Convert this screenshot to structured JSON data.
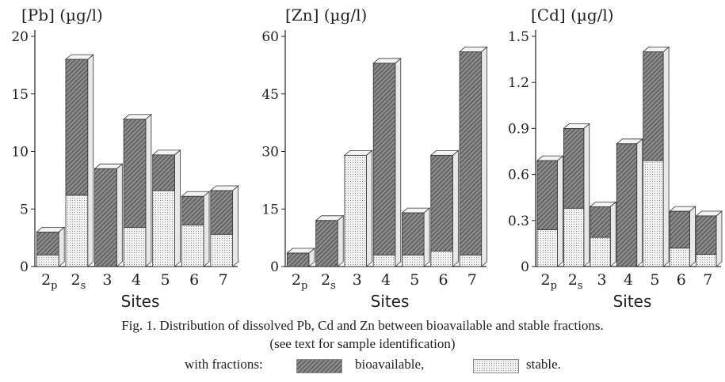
{
  "chart_data": [
    {
      "type": "bar",
      "stacked": true,
      "title": "[Pb] (µg/l)",
      "xlabel": "Sites",
      "categories": [
        "2p",
        "2s",
        "3",
        "4",
        "5",
        "6",
        "7"
      ],
      "category_base": [
        "2",
        "2",
        "3",
        "4",
        "5",
        "6",
        "7"
      ],
      "category_sub": [
        "p",
        "s",
        "",
        "",
        "",
        "",
        ""
      ],
      "yticks": [
        "0",
        "5",
        "10",
        "15",
        "20"
      ],
      "ylim": [
        0,
        20
      ],
      "series": [
        {
          "name": "stable",
          "values": [
            1.0,
            6.2,
            0,
            3.4,
            6.6,
            3.6,
            2.8
          ]
        },
        {
          "name": "bioavailable",
          "values": [
            2.0,
            11.8,
            8.5,
            9.4,
            3.1,
            2.5,
            3.8
          ]
        }
      ]
    },
    {
      "type": "bar",
      "stacked": true,
      "title": "[Zn] (µg/l)",
      "xlabel": "Sites",
      "categories": [
        "2p",
        "2s",
        "3",
        "4",
        "5",
        "6",
        "7"
      ],
      "category_base": [
        "2",
        "2",
        "3",
        "4",
        "5",
        "6",
        "7"
      ],
      "category_sub": [
        "p",
        "s",
        "",
        "",
        "",
        "",
        ""
      ],
      "yticks": [
        "0",
        "15",
        "30",
        "45",
        "60"
      ],
      "ylim": [
        0,
        60
      ],
      "series": [
        {
          "name": "stable",
          "values": [
            0,
            0,
            29,
            3,
            3,
            4,
            3
          ]
        },
        {
          "name": "bioavailable",
          "values": [
            3.5,
            12,
            0,
            50,
            11,
            25,
            53
          ]
        }
      ]
    },
    {
      "type": "bar",
      "stacked": true,
      "title": "[Cd] (µg/l)",
      "xlabel": "Sites",
      "categories": [
        "2p",
        "2s",
        "3",
        "4",
        "5",
        "6",
        "7"
      ],
      "category_base": [
        "2",
        "2",
        "3",
        "4",
        "5",
        "6",
        "7"
      ],
      "category_sub": [
        "p",
        "s",
        "",
        "",
        "",
        "",
        ""
      ],
      "yticks": [
        "0",
        "0.3",
        "0.6",
        "0.9",
        "1.2",
        "1.5"
      ],
      "ylim": [
        0,
        1.5
      ],
      "series": [
        {
          "name": "stable",
          "values": [
            0.24,
            0.38,
            0.19,
            0,
            0.69,
            0.12,
            0.08
          ]
        },
        {
          "name": "bioavailable",
          "values": [
            0.45,
            0.52,
            0.2,
            0.8,
            0.71,
            0.24,
            0.25
          ]
        }
      ]
    }
  ],
  "caption": {
    "line1": "Fig. 1. Distribution of dissolved Pb, Cd and Zn between bioavailable and stable fractions.",
    "line2": "(see text for sample identification)"
  },
  "legend": {
    "prefix": "with fractions:",
    "bioavailable_label": "bioavailable,",
    "stable_label": "stable."
  },
  "colors": {
    "bioavailable": "#6e6e6e",
    "stable": "#d6d6d6",
    "axis": "#222222"
  }
}
